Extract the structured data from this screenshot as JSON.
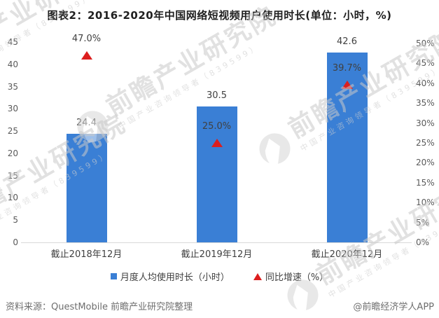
{
  "title": "图表2：2016-2020年中国网络短视频用户使用时长(单位：小时，%)",
  "chart_data": {
    "type": "bar",
    "categories": [
      "截止2018年12月",
      "截止2019年12月",
      "截止2020年12月"
    ],
    "series": [
      {
        "name": "月度人均使用时长（小时）",
        "type": "bar",
        "axis": "left",
        "values": [
          24.4,
          30.5,
          42.6
        ],
        "labels": [
          "24.4",
          "30.5",
          "42.6"
        ],
        "color": "#3a7fd5"
      },
      {
        "name": "同比增速（%）",
        "type": "scatter-triangle",
        "axis": "right",
        "values": [
          47.0,
          25.0,
          39.7
        ],
        "labels": [
          "47.0%",
          "25.0%",
          "39.7%"
        ],
        "color": "#dc1e1e"
      }
    ],
    "left_axis": {
      "min": 0,
      "max": 45,
      "ticks": [
        "45",
        "40",
        "35",
        "30",
        "25",
        "20",
        "15",
        "10",
        "5",
        "0"
      ]
    },
    "right_axis": {
      "min": 0,
      "max": 50,
      "ticks": [
        "50%",
        "45%",
        "40%",
        "35%",
        "30%",
        "25%",
        "20%",
        "15%",
        "10%",
        "5%",
        "0%"
      ]
    },
    "grid": false,
    "legend_position": "bottom"
  },
  "legend": {
    "items": [
      {
        "label": "月度人均使用时长（小时）",
        "marker": "square",
        "color": "#3a7fd5"
      },
      {
        "label": "同比增速（%）",
        "marker": "triangle",
        "color": "#dc1e1e"
      }
    ]
  },
  "footer": {
    "source": "资料来源：QuestMobile 前瞻产业研究院整理",
    "credit": "@前瞻经济学人APP"
  },
  "watermark": {
    "text": "前瞻产业研究院",
    "subtext": "中国产业咨询领导者（839599）"
  },
  "colors": {
    "bar": "#3a7fd5",
    "triangle": "#dc1e1e",
    "axis_line": "#d9d9d9",
    "tick_text": "#595959",
    "footer_text": "#6e6e6e"
  }
}
